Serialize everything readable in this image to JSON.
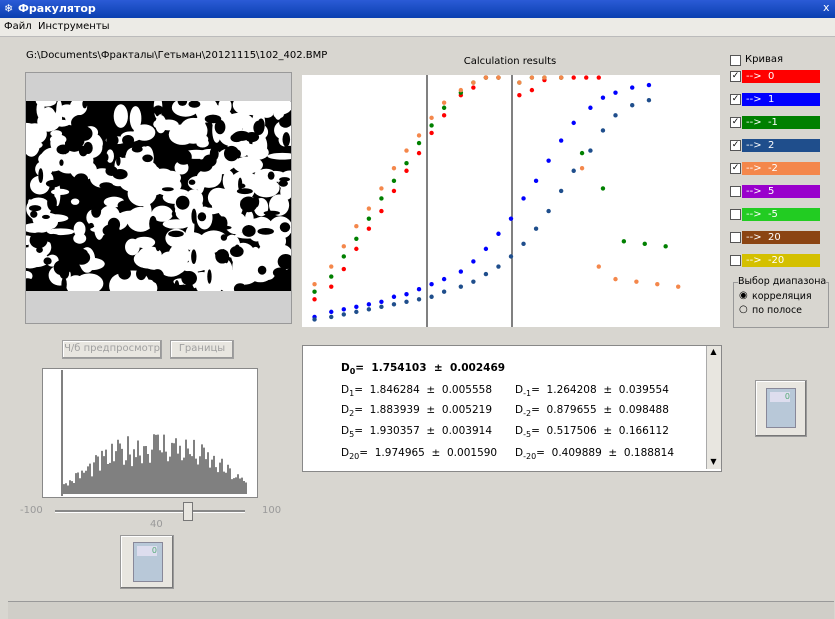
{
  "window": {
    "title": "Фракулятор",
    "close": "x"
  },
  "menu": [
    "Файл",
    "Инструменты"
  ],
  "file_path": "G:\\Documents\\Фракталы\\Гетьман\\20121115\\102_402.BMP",
  "buttons": {
    "preview": "Ч/б предпросмотр",
    "borders": "Границы"
  },
  "slider": {
    "min": -100,
    "max": 100,
    "value": 40
  },
  "chart_data": {
    "type": "scatter",
    "title": "Calculation results",
    "xlim": [
      0,
      100
    ],
    "ylim": [
      0,
      100
    ],
    "series": [
      {
        "name": "-->  0",
        "color": "#ff0000",
        "checked": true,
        "x": [
          3,
          7,
          10,
          13,
          16,
          19,
          22,
          25,
          28,
          31,
          34,
          38,
          41,
          44,
          47,
          52,
          55,
          58,
          62,
          65,
          68,
          71
        ],
        "values": [
          11,
          16,
          23,
          31,
          39,
          46,
          54,
          62,
          69,
          77,
          84,
          92,
          95,
          99,
          99,
          92,
          94,
          98,
          99,
          99,
          99,
          99
        ]
      },
      {
        "name": "-->  1",
        "color": "#0000ff",
        "checked": true,
        "x": [
          3,
          7,
          10,
          13,
          16,
          19,
          22,
          25,
          28,
          31,
          34,
          38,
          41,
          44,
          47,
          50,
          53,
          56,
          59,
          62,
          65,
          69,
          72,
          75,
          79,
          83
        ],
        "values": [
          4,
          6,
          7,
          8,
          9,
          10,
          12,
          13,
          15,
          17,
          19,
          22,
          26,
          31,
          37,
          43,
          51,
          58,
          66,
          74,
          81,
          87,
          91,
          93,
          95,
          96
        ]
      },
      {
        "name": "-->  -1",
        "color": "#008000",
        "checked": true,
        "x": [
          3,
          7,
          10,
          13,
          16,
          19,
          22,
          25,
          28,
          31,
          34,
          38,
          41,
          44,
          47,
          52,
          55,
          58,
          62,
          67,
          72,
          77,
          82,
          87
        ],
        "values": [
          14,
          20,
          28,
          35,
          43,
          51,
          58,
          65,
          73,
          80,
          87,
          93,
          97,
          99,
          99,
          97,
          99,
          99,
          99,
          69,
          55,
          34,
          33,
          32
        ]
      },
      {
        "name": "-->  2",
        "color": "#1f4e8c",
        "checked": true,
        "x": [
          3,
          7,
          10,
          13,
          16,
          19,
          22,
          25,
          28,
          31,
          34,
          38,
          41,
          44,
          47,
          50,
          53,
          56,
          59,
          62,
          65,
          69,
          72,
          75,
          79,
          83
        ],
        "values": [
          3,
          4,
          5,
          6,
          7,
          8,
          9,
          10,
          11,
          12,
          14,
          16,
          18,
          21,
          24,
          28,
          33,
          39,
          46,
          54,
          62,
          70,
          78,
          84,
          88,
          90
        ]
      },
      {
        "name": "-->  -2",
        "color": "#f4874b",
        "checked": true,
        "x": [
          3,
          7,
          10,
          13,
          16,
          19,
          22,
          25,
          28,
          31,
          34,
          38,
          41,
          44,
          47,
          52,
          55,
          58,
          62,
          67,
          71,
          75,
          80,
          85,
          90
        ],
        "values": [
          17,
          24,
          32,
          40,
          47,
          55,
          63,
          70,
          76,
          83,
          89,
          94,
          97,
          99,
          99,
          97,
          99,
          99,
          99,
          63,
          24,
          19,
          18,
          17,
          16
        ]
      },
      {
        "name": "-->  5",
        "color": "#9900cc",
        "checked": false,
        "x": [],
        "values": []
      },
      {
        "name": "-->  -5",
        "color": "#22cc22",
        "checked": false,
        "x": [],
        "values": []
      },
      {
        "name": "-->  20",
        "color": "#8b4513",
        "checked": false,
        "x": [],
        "values": []
      },
      {
        "name": "-->  -20",
        "color": "#d4c000",
        "checked": false,
        "x": [],
        "values": []
      }
    ]
  },
  "curve_checkbox": "Кривая",
  "results": {
    "left": [
      {
        "symbol": "D",
        "index": "0",
        "text": "=  1.754103  ±  0.002469",
        "bold": true
      },
      {
        "symbol": "D",
        "index": "1",
        "text": "=  1.846284  ±  0.005558",
        "bold": false
      },
      {
        "symbol": "D",
        "index": "2",
        "text": "=  1.883939  ±  0.005219",
        "bold": false
      },
      {
        "symbol": "D",
        "index": "5",
        "text": "=  1.930357  ±  0.003914",
        "bold": false
      },
      {
        "symbol": "D",
        "index": "20",
        "text": "=  1.974965  ±  0.001590",
        "bold": false
      }
    ],
    "right": [
      {
        "symbol": "D",
        "index": "-1",
        "text": "=  1.264208  ±  0.039554"
      },
      {
        "symbol": "D",
        "index": "-2",
        "text": "=  0.879655  ±  0.098488"
      },
      {
        "symbol": "D",
        "index": "-5",
        "text": "=  0.517506  ±  0.166112"
      },
      {
        "symbol": "D",
        "index": "-20",
        "text": "=  0.409889  ±  0.188814"
      }
    ]
  },
  "range_group": {
    "title": "Выбор диапазона",
    "options": [
      {
        "label": "корреляция",
        "selected": true
      },
      {
        "label": "по полосе",
        "selected": false
      }
    ]
  },
  "calc_display": "0"
}
